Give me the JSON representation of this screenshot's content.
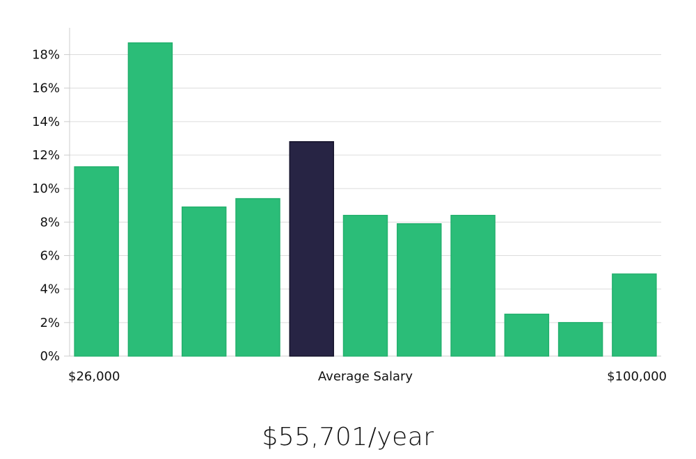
{
  "chart_data": {
    "type": "bar",
    "ylim": [
      0,
      19.6
    ],
    "y_ticks": [
      0,
      2,
      4,
      6,
      8,
      10,
      12,
      14,
      16,
      18
    ],
    "y_tick_suffix": "%",
    "grid": true,
    "values": [
      11.3,
      18.7,
      8.9,
      9.4,
      12.8,
      8.4,
      7.9,
      8.4,
      2.5,
      2.0,
      4.9
    ],
    "highlight_index": 4,
    "x_labels": {
      "left": "$26,000",
      "center": "Average Salary",
      "right": "$100,000"
    }
  },
  "colors": {
    "bar": "#2bbd78",
    "bar_edge": "#23b06d",
    "highlight": "#272444",
    "grid": "#dcdcdc",
    "axis": "#cccccc"
  },
  "summary": {
    "salary_text": "$55,701/year"
  }
}
